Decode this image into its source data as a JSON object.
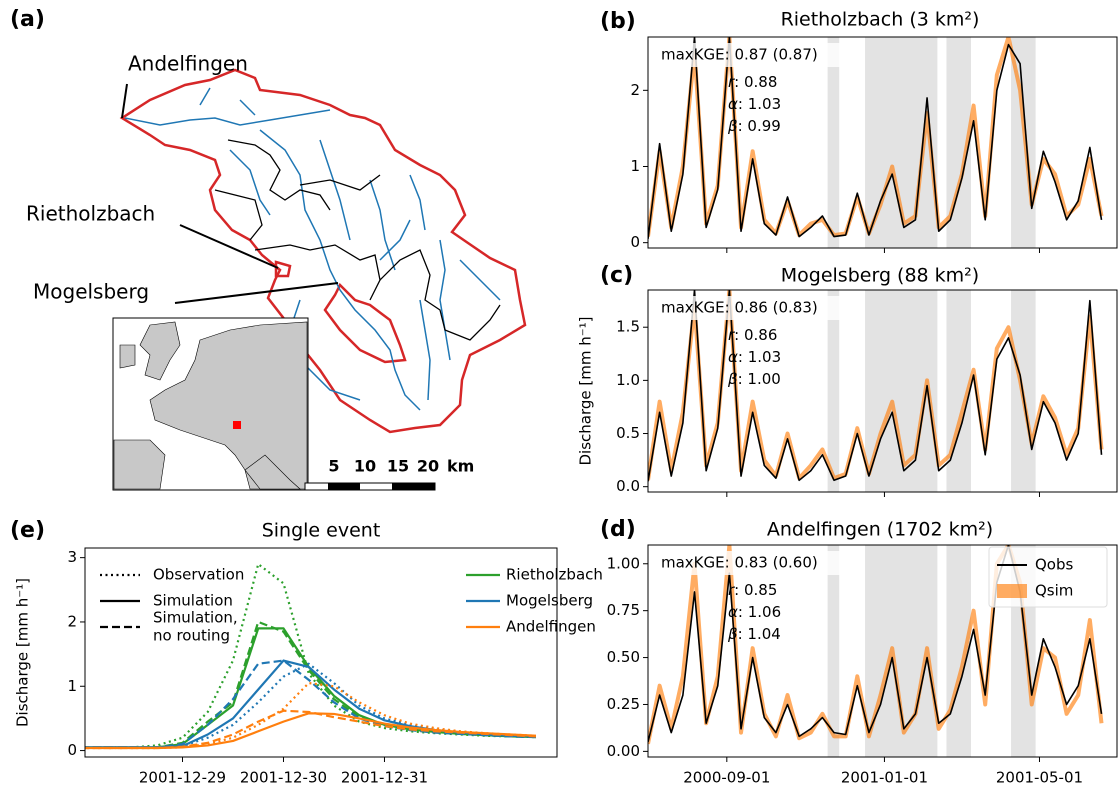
{
  "map": {
    "panel": "(a)",
    "labels": [
      "Andelfingen",
      "Rietholzbach",
      "Mogelsberg"
    ],
    "scale_labels": [
      5,
      10,
      15,
      20
    ],
    "scale_unit": "km"
  },
  "chart_data": [
    {
      "type": "line",
      "panel": "(b)",
      "title": "Rietholzbach (3 km²)",
      "x": [
        "2000-07-02",
        "2000-07-11",
        "2000-07-20",
        "2000-07-29",
        "2000-08-07",
        "2000-08-16",
        "2000-08-25",
        "2000-09-03",
        "2000-09-12",
        "2000-09-21",
        "2000-09-30",
        "2000-10-09",
        "2000-10-18",
        "2000-10-27",
        "2000-11-05",
        "2000-11-14",
        "2000-11-23",
        "2000-12-02",
        "2000-12-11",
        "2000-12-20",
        "2000-12-29",
        "2001-01-07",
        "2001-01-16",
        "2001-01-25",
        "2001-02-03",
        "2001-02-12",
        "2001-02-21",
        "2001-03-02",
        "2001-03-11",
        "2001-03-20",
        "2001-03-29",
        "2001-04-07",
        "2001-04-16",
        "2001-04-25",
        "2001-05-04",
        "2001-05-13",
        "2001-05-22",
        "2001-05-31",
        "2001-06-09",
        "2001-06-18"
      ],
      "series": [
        {
          "color": "#ff7f0e",
          "values": [
            0.08,
            1.2,
            0.2,
            1.0,
            2.5,
            0.25,
            0.75,
            2.7,
            0.2,
            1.2,
            0.3,
            0.12,
            0.55,
            0.1,
            0.25,
            0.3,
            0.1,
            0.12,
            0.6,
            0.12,
            0.5,
            1.0,
            0.25,
            0.35,
            1.7,
            0.2,
            0.35,
            0.9,
            1.8,
            0.35,
            2.2,
            2.7,
            2.0,
            0.5,
            1.1,
            0.9,
            0.35,
            0.5,
            1.1,
            0.35
          ]
        },
        {
          "color": "#000000",
          "values": [
            0.05,
            1.3,
            0.15,
            0.9,
            2.7,
            0.2,
            0.7,
            2.7,
            0.15,
            1.1,
            0.25,
            0.1,
            0.6,
            0.08,
            0.2,
            0.35,
            0.08,
            0.1,
            0.65,
            0.1,
            0.55,
            0.9,
            0.2,
            0.3,
            1.9,
            0.15,
            0.3,
            0.85,
            1.6,
            0.3,
            2.0,
            2.6,
            2.35,
            0.45,
            1.2,
            0.8,
            0.3,
            0.55,
            1.25,
            0.3
          ]
        }
      ],
      "xlim": [
        "2000-07-02",
        "2001-06-30"
      ],
      "xticks": [
        "2000-09-01",
        "2001-01-01",
        "2001-05-01"
      ],
      "xtick_labels": false,
      "ylim": [
        -0.07,
        2.7
      ],
      "yticks": [
        0,
        1,
        2
      ],
      "shaded_periods": [
        [
          "2000-11-18",
          "2000-11-27"
        ],
        [
          "2000-12-17",
          "2001-02-11"
        ],
        [
          "2001-02-18",
          "2001-03-09"
        ],
        [
          "2001-04-09",
          "2001-04-28"
        ]
      ],
      "annotation": "maxKGE: 0.87 (0.87)",
      "stats": [
        {
          "symbol": "r",
          "text": ": 0.88"
        },
        {
          "symbol": "α",
          "text": ": 1.03"
        },
        {
          "symbol": "β",
          "text": ": 0.99"
        }
      ]
    },
    {
      "type": "line",
      "panel": "(c)",
      "title": "Mogelsberg (88 km²)",
      "ylabel": "Discharge [mm h⁻¹]",
      "x": [
        "2000-07-02",
        "2000-07-11",
        "2000-07-20",
        "2000-07-29",
        "2000-08-07",
        "2000-08-16",
        "2000-08-25",
        "2000-09-03",
        "2000-09-12",
        "2000-09-21",
        "2000-09-30",
        "2000-10-09",
        "2000-10-18",
        "2000-10-27",
        "2000-11-05",
        "2000-11-14",
        "2000-11-23",
        "2000-12-02",
        "2000-12-11",
        "2000-12-20",
        "2000-12-29",
        "2001-01-07",
        "2001-01-16",
        "2001-01-25",
        "2001-02-03",
        "2001-02-12",
        "2001-02-21",
        "2001-03-02",
        "2001-03-11",
        "2001-03-20",
        "2001-03-29",
        "2001-04-07",
        "2001-04-16",
        "2001-04-25",
        "2001-05-04",
        "2001-05-13",
        "2001-05-22",
        "2001-05-31",
        "2001-06-09",
        "2001-06-18"
      ],
      "series": [
        {
          "color": "#ff7f0e",
          "values": [
            0.06,
            0.8,
            0.15,
            0.7,
            1.7,
            0.2,
            0.6,
            1.85,
            0.15,
            0.8,
            0.25,
            0.1,
            0.5,
            0.08,
            0.2,
            0.35,
            0.08,
            0.12,
            0.55,
            0.12,
            0.5,
            0.8,
            0.2,
            0.3,
            1.0,
            0.2,
            0.3,
            0.7,
            1.1,
            0.35,
            1.3,
            1.5,
            1.0,
            0.4,
            0.85,
            0.65,
            0.3,
            0.55,
            1.6,
            0.35
          ]
        },
        {
          "color": "#000000",
          "values": [
            0.05,
            0.7,
            0.1,
            0.6,
            1.85,
            0.15,
            0.55,
            1.85,
            0.1,
            0.7,
            0.2,
            0.08,
            0.45,
            0.06,
            0.15,
            0.3,
            0.06,
            0.1,
            0.5,
            0.1,
            0.45,
            0.7,
            0.15,
            0.25,
            0.95,
            0.15,
            0.25,
            0.6,
            1.05,
            0.3,
            1.2,
            1.4,
            1.05,
            0.35,
            0.8,
            0.6,
            0.25,
            0.5,
            1.75,
            0.3
          ]
        }
      ],
      "xlim": [
        "2000-07-02",
        "2001-06-30"
      ],
      "xticks": [
        "2000-09-01",
        "2001-01-01",
        "2001-05-01"
      ],
      "xtick_labels": false,
      "ylim": [
        -0.05,
        1.85
      ],
      "yticks": [
        {
          "value": 0,
          "label": "0.0"
        },
        {
          "value": 0.5,
          "label": "0.5"
        },
        {
          "value": 1,
          "label": "1.0"
        },
        {
          "value": 1.5,
          "label": "1.5"
        }
      ],
      "shaded_periods": [
        [
          "2000-11-18",
          "2000-11-27"
        ],
        [
          "2000-12-17",
          "2001-02-11"
        ],
        [
          "2001-02-18",
          "2001-03-09"
        ],
        [
          "2001-04-09",
          "2001-04-28"
        ]
      ],
      "annotation": "maxKGE: 0.86 (0.83)",
      "stats": [
        {
          "symbol": "r",
          "text": ": 0.86"
        },
        {
          "symbol": "α",
          "text": ": 1.03"
        },
        {
          "symbol": "β",
          "text": ": 1.00"
        }
      ]
    },
    {
      "type": "line",
      "panel": "(d)",
      "title": "Andelfingen (1702 km²)",
      "x": [
        "2000-07-02",
        "2000-07-11",
        "2000-07-20",
        "2000-07-29",
        "2000-08-07",
        "2000-08-16",
        "2000-08-25",
        "2000-09-03",
        "2000-09-12",
        "2000-09-21",
        "2000-09-30",
        "2000-10-09",
        "2000-10-18",
        "2000-10-27",
        "2000-11-05",
        "2000-11-14",
        "2000-11-23",
        "2000-12-02",
        "2000-12-11",
        "2000-12-20",
        "2000-12-29",
        "2001-01-07",
        "2001-01-16",
        "2001-01-25",
        "2001-02-03",
        "2001-02-12",
        "2001-02-21",
        "2001-03-02",
        "2001-03-11",
        "2001-03-20",
        "2001-03-29",
        "2001-04-07",
        "2001-04-16",
        "2001-04-25",
        "2001-05-04",
        "2001-05-13",
        "2001-05-22",
        "2001-05-31",
        "2001-06-09",
        "2001-06-18"
      ],
      "series": [
        {
          "name": "Qsim",
          "color": "#ff7f0e",
          "values": [
            0.04,
            0.35,
            0.12,
            0.4,
            1.0,
            0.15,
            0.4,
            1.1,
            0.1,
            0.55,
            0.2,
            0.08,
            0.3,
            0.07,
            0.1,
            0.2,
            0.08,
            0.08,
            0.4,
            0.08,
            0.3,
            0.55,
            0.1,
            0.2,
            0.55,
            0.12,
            0.22,
            0.45,
            0.75,
            0.25,
            1.0,
            1.1,
            0.9,
            0.25,
            0.55,
            0.5,
            0.2,
            0.3,
            0.7,
            0.15
          ]
        },
        {
          "name": "Qobs",
          "color": "#000000",
          "values": [
            0.05,
            0.3,
            0.1,
            0.3,
            0.85,
            0.15,
            0.35,
            0.95,
            0.12,
            0.5,
            0.18,
            0.1,
            0.25,
            0.08,
            0.12,
            0.18,
            0.1,
            0.09,
            0.35,
            0.1,
            0.25,
            0.5,
            0.12,
            0.2,
            0.5,
            0.15,
            0.2,
            0.4,
            0.65,
            0.3,
            0.9,
            1.1,
            0.85,
            0.3,
            0.6,
            0.45,
            0.25,
            0.35,
            0.6,
            0.2
          ]
        }
      ],
      "legend": "upper right",
      "xlim": [
        "2000-07-02",
        "2001-06-30"
      ],
      "xticks": [
        "2000-09-01",
        "2001-01-01",
        "2001-05-01"
      ],
      "xtick_labels": true,
      "ylim": [
        -0.03,
        1.1
      ],
      "yticks": [
        {
          "value": 0,
          "label": "0.00"
        },
        {
          "value": 0.25,
          "label": "0.25"
        },
        {
          "value": 0.5,
          "label": "0.50"
        },
        {
          "value": 0.75,
          "label": "0.75"
        },
        {
          "value": 1,
          "label": "1.00"
        }
      ],
      "shaded_periods": [
        [
          "2000-11-18",
          "2000-11-27"
        ],
        [
          "2000-12-17",
          "2001-02-11"
        ],
        [
          "2001-02-18",
          "2001-03-09"
        ],
        [
          "2001-04-09",
          "2001-04-28"
        ]
      ],
      "annotation": "maxKGE: 0.83 (0.60)",
      "stats": [
        {
          "symbol": "r",
          "text": ": 0.85"
        },
        {
          "symbol": "α",
          "text": ": 1.06"
        },
        {
          "symbol": "β",
          "text": ": 1.04"
        }
      ]
    },
    {
      "type": "event",
      "panel": "(e)",
      "title": "Single event",
      "ylabel": "Discharge [mm h⁻¹]",
      "x": [
        "2001-12-28T00:00",
        "2001-12-28T06:00",
        "2001-12-28T12:00",
        "2001-12-28T18:00",
        "2001-12-29T00:00",
        "2001-12-29T06:00",
        "2001-12-29T12:00",
        "2001-12-29T18:00",
        "2001-12-30T00:00",
        "2001-12-30T06:00",
        "2001-12-30T12:00",
        "2001-12-30T18:00",
        "2001-12-31T00:00",
        "2001-12-31T06:00",
        "2001-12-31T12:00",
        "2001-12-31T18:00",
        "2002-01-01T00:00",
        "2002-01-01T06:00",
        "2002-01-01T12:00"
      ],
      "xlim": [
        "2001-12-28T00:50",
        "2002-01-01T17:00"
      ],
      "xticks": [
        "2001-12-29",
        "2001-12-30",
        "2001-12-31"
      ],
      "ylim": [
        -0.1,
        3.15
      ],
      "yticks": [
        0,
        1,
        2,
        3
      ],
      "styles": [
        {
          "lines": [
            "Observation"
          ],
          "dash": "dotted"
        },
        {
          "lines": [
            "Simulation"
          ],
          "dash": "solid"
        },
        {
          "lines": [
            "Simulation,",
            "no routing"
          ],
          "dash": "dashed"
        }
      ],
      "stations": [
        {
          "name": "Rietholzbach",
          "color": "#2ca02c"
        },
        {
          "name": "Mogelsberg",
          "color": "#1f77b4"
        },
        {
          "name": "Andelfingen",
          "color": "#ff7f0e"
        }
      ],
      "series": [
        {
          "station": 0,
          "style": 0,
          "values": [
            0.05,
            0.05,
            0.05,
            0.08,
            0.2,
            0.6,
            1.4,
            2.9,
            2.6,
            1.2,
            0.7,
            0.45,
            0.35,
            0.3,
            0.27,
            0.25,
            0.23,
            0.22,
            0.21
          ]
        },
        {
          "station": 0,
          "style": 1,
          "values": [
            0.05,
            0.05,
            0.05,
            0.05,
            0.1,
            0.4,
            0.7,
            1.9,
            1.9,
            1.3,
            0.85,
            0.55,
            0.4,
            0.33,
            0.29,
            0.26,
            0.24,
            0.22,
            0.21
          ]
        },
        {
          "station": 0,
          "style": 2,
          "values": [
            0.05,
            0.05,
            0.05,
            0.05,
            0.12,
            0.45,
            0.75,
            2.0,
            1.85,
            1.25,
            0.8,
            0.52,
            0.39,
            0.32,
            0.28,
            0.26,
            0.24,
            0.22,
            0.21
          ]
        },
        {
          "station": 1,
          "style": 0,
          "values": [
            0.05,
            0.05,
            0.05,
            0.05,
            0.07,
            0.2,
            0.4,
            0.75,
            1.15,
            1.35,
            1.05,
            0.7,
            0.5,
            0.4,
            0.33,
            0.29,
            0.26,
            0.24,
            0.22
          ]
        },
        {
          "station": 1,
          "style": 1,
          "values": [
            0.05,
            0.05,
            0.05,
            0.05,
            0.07,
            0.25,
            0.5,
            0.95,
            1.4,
            1.3,
            0.95,
            0.65,
            0.47,
            0.38,
            0.32,
            0.28,
            0.25,
            0.23,
            0.22
          ]
        },
        {
          "station": 1,
          "style": 2,
          "values": [
            0.05,
            0.05,
            0.05,
            0.05,
            0.1,
            0.4,
            0.8,
            1.35,
            1.4,
            1.1,
            0.75,
            0.5,
            0.38,
            0.32,
            0.28,
            0.26,
            0.24,
            0.22,
            0.21
          ]
        },
        {
          "station": 2,
          "style": 0,
          "values": [
            0.04,
            0.04,
            0.04,
            0.04,
            0.05,
            0.1,
            0.2,
            0.4,
            0.65,
            1.05,
            1.0,
            0.75,
            0.55,
            0.42,
            0.35,
            0.3,
            0.27,
            0.25,
            0.23
          ]
        },
        {
          "station": 2,
          "style": 1,
          "values": [
            0.04,
            0.04,
            0.04,
            0.04,
            0.05,
            0.08,
            0.15,
            0.3,
            0.45,
            0.58,
            0.57,
            0.5,
            0.42,
            0.36,
            0.32,
            0.29,
            0.27,
            0.25,
            0.23
          ]
        },
        {
          "station": 2,
          "style": 2,
          "values": [
            0.04,
            0.04,
            0.04,
            0.04,
            0.06,
            0.12,
            0.25,
            0.45,
            0.62,
            0.6,
            0.52,
            0.45,
            0.38,
            0.33,
            0.3,
            0.28,
            0.26,
            0.24,
            0.22
          ]
        }
      ]
    }
  ]
}
